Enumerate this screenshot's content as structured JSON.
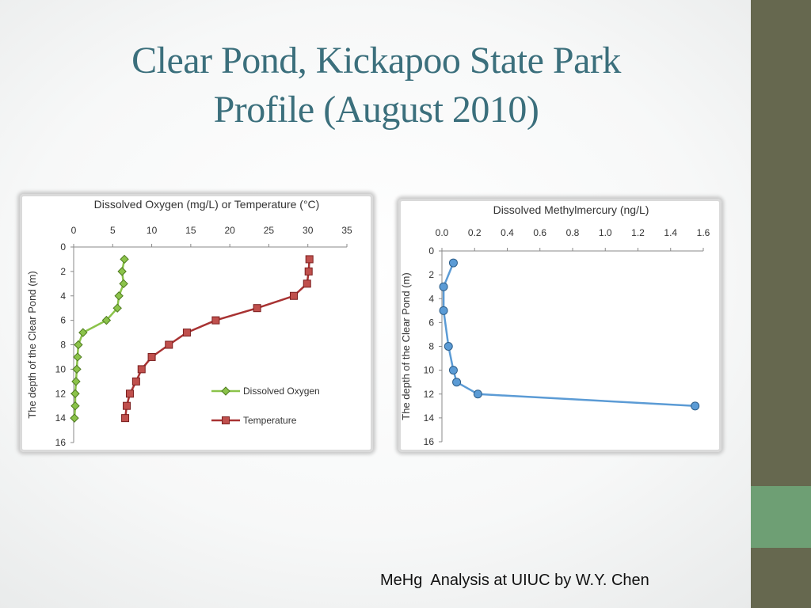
{
  "slide": {
    "title_line1": "Clear Pond, Kickapoo State Park",
    "title_line2": "Profile (August 2010)",
    "footer": "MeHg  Analysis at UIUC by W.Y. Chen"
  },
  "colors": {
    "sidebar": "#66684f",
    "sidebar_accent": "#6e9f74",
    "title": "#3b6f7c",
    "dissolved_oxygen": "#8bc34a",
    "temperature": "#a83232",
    "methylmercury": "#5b9bd5"
  },
  "chart_data": [
    {
      "type": "line",
      "title": "Dissolved Oxygen (mg/L) or Temperature (°C)",
      "xlabel": "",
      "ylabel": "The depth of the Clear Pond (m)",
      "x_axis_position": "top",
      "y_inverted": true,
      "xlim": [
        0,
        35
      ],
      "ylim": [
        0,
        16
      ],
      "x_ticks": [
        "0",
        "5",
        "10",
        "15",
        "20",
        "25",
        "30",
        "35"
      ],
      "y_ticks": [
        "0",
        "2",
        "4",
        "6",
        "8",
        "10",
        "12",
        "14",
        "16"
      ],
      "grid": false,
      "legend_position": "bottom-right",
      "series": [
        {
          "name": "Dissolved Oxygen",
          "marker": "diamond",
          "points": [
            [
              6.5,
              1
            ],
            [
              6.2,
              2
            ],
            [
              6.4,
              3
            ],
            [
              5.8,
              4
            ],
            [
              5.6,
              5
            ],
            [
              4.2,
              6
            ],
            [
              1.2,
              7
            ],
            [
              0.6,
              8
            ],
            [
              0.5,
              9
            ],
            [
              0.4,
              10
            ],
            [
              0.3,
              11
            ],
            [
              0.2,
              12
            ],
            [
              0.2,
              13
            ],
            [
              0.1,
              14
            ]
          ]
        },
        {
          "name": "Temperature",
          "marker": "square",
          "points": [
            [
              30.2,
              1
            ],
            [
              30.1,
              2
            ],
            [
              29.9,
              3
            ],
            [
              28.2,
              4
            ],
            [
              23.5,
              5
            ],
            [
              18.2,
              6
            ],
            [
              14.5,
              7
            ],
            [
              12.2,
              8
            ],
            [
              10.0,
              9
            ],
            [
              8.7,
              10
            ],
            [
              8.0,
              11
            ],
            [
              7.2,
              12
            ],
            [
              6.8,
              13
            ],
            [
              6.6,
              14
            ]
          ]
        }
      ]
    },
    {
      "type": "line",
      "title": "Dissolved Methylmercury (ng/L)",
      "xlabel": "",
      "ylabel": "The depth of the Clear Pond (m)",
      "x_axis_position": "top",
      "y_inverted": true,
      "xlim": [
        0,
        1.6
      ],
      "ylim": [
        0,
        16
      ],
      "x_ticks": [
        "0.0",
        "0.2",
        "0.4",
        "0.6",
        "0.8",
        "1.0",
        "1.2",
        "1.4",
        "1.6"
      ],
      "y_ticks": [
        "0",
        "2",
        "4",
        "6",
        "8",
        "10",
        "12",
        "14",
        "16"
      ],
      "grid": false,
      "series": [
        {
          "name": "",
          "marker": "circle",
          "points": [
            [
              0.07,
              1
            ],
            [
              0.01,
              3
            ],
            [
              0.01,
              5
            ],
            [
              0.04,
              8
            ],
            [
              0.07,
              10
            ],
            [
              0.09,
              11
            ],
            [
              0.22,
              12
            ],
            [
              1.55,
              13
            ]
          ]
        }
      ]
    }
  ]
}
